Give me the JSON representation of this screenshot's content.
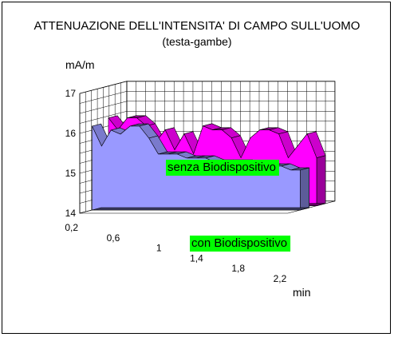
{
  "chart_data": {
    "type": "area",
    "title": "ATTENUAZIONE DELL'INTENSITA' DI CAMPO SULL'UOMO",
    "subtitle": "(testa-gambe)",
    "ylabel": "mA/m",
    "xlabel": "min",
    "ylim": [
      14,
      17
    ],
    "yticks": [
      "14",
      "15",
      "16",
      "17"
    ],
    "xticks": [
      "0,2",
      "0,6",
      "1",
      "1,4",
      "1,8",
      "2,2"
    ],
    "x": [
      0.2,
      0.3,
      0.4,
      0.5,
      0.6,
      0.7,
      0.8,
      0.9,
      1.0,
      1.1,
      1.2,
      1.3,
      1.4,
      1.5,
      1.6,
      1.7,
      1.8,
      1.9,
      2.0,
      2.1,
      2.2,
      2.3,
      2.4
    ],
    "grid": true,
    "series": [
      {
        "name": "senza Biodispositivo",
        "color": "#ff00ff",
        "label_bg": "#00ff00",
        "values": [
          16.2,
          15.9,
          16.2,
          16.2,
          16.0,
          15.6,
          15.9,
          15.4,
          15.8,
          15.3,
          16.0,
          15.9,
          15.9,
          15.7,
          15.2,
          15.7,
          15.9,
          15.9,
          15.8,
          15.2,
          15.5,
          15.8,
          15.2
        ]
      },
      {
        "name": "con Biodispositivo",
        "color": "#9999ff",
        "label_bg": "#00ff00",
        "values": [
          16.1,
          15.6,
          16.0,
          15.9,
          16.1,
          16.1,
          15.8,
          15.4,
          15.4,
          15.4,
          15.3,
          15.3,
          15.3,
          15.2,
          15.2,
          15.2,
          15.2,
          15.1,
          15.1,
          15.1,
          15.1,
          15.0,
          15.0
        ]
      }
    ]
  }
}
